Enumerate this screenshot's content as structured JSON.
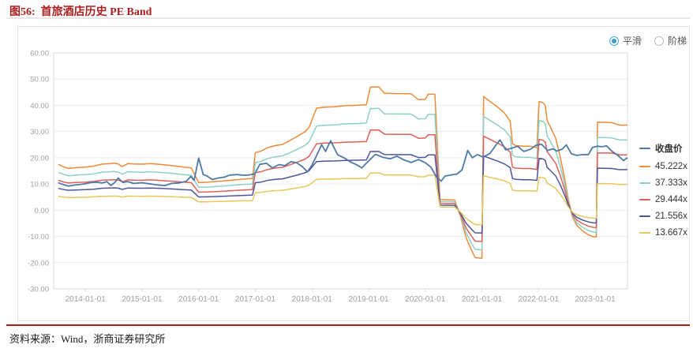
{
  "header": {
    "title": "图56:  首旅酒店历史 PE Band"
  },
  "controls": {
    "smooth_label": "平滑",
    "step_label": "阶梯",
    "selected": "平滑"
  },
  "footer": {
    "source": "资料来源：Wind，浙商证券研究所"
  },
  "colors": {
    "title_red": "#ae1c1c",
    "close": "#4e79a7",
    "band_45": "#ee8a38",
    "band_37": "#8ecfc5",
    "band_29": "#dd6057",
    "band_21": "#4e549c",
    "band_13": "#e7c75a",
    "grid": "#ececef",
    "plot_border": "#d5dae4",
    "axis_text": "#9aa0a6",
    "radio_accent": "#3d9ad1"
  },
  "chart_data": {
    "type": "line",
    "title": "首旅酒店历史 PE Band",
    "grid": true,
    "legend_position": "right",
    "y_axis": {
      "min": -30,
      "max": 60,
      "tick_values": [
        60,
        50,
        40,
        30,
        20,
        10,
        0,
        -10,
        -20,
        -30
      ],
      "tick_labels": [
        "60.00",
        "50.00",
        "40.00",
        "30.00",
        "20.00",
        "10.00",
        "0.00",
        "-10.00",
        "-20.00",
        "-30.00"
      ]
    },
    "x_axis": {
      "range_years": [
        2013.44,
        2023.57
      ],
      "tick_years": [
        2014,
        2015,
        2016,
        2017,
        2018,
        2019,
        2020,
        2021,
        2022,
        2023
      ],
      "tick_labels": [
        "2014-01-01",
        "2015-01-01",
        "2016-01-01",
        "2017-01-01",
        "2018-01-01",
        "2019-01-01",
        "2020-01-01",
        "2021-01-01",
        "2022-01-01",
        "2023-01-01"
      ]
    },
    "legend": [
      {
        "label": "收盘价",
        "color": "#4e79a7"
      },
      {
        "label": "45.222x",
        "color": "#ee8a38"
      },
      {
        "label": "37.333x",
        "color": "#8ecfc5"
      },
      {
        "label": "29.444x",
        "color": "#dd6057"
      },
      {
        "label": "21.556x",
        "color": "#4e549c"
      },
      {
        "label": "13.667x",
        "color": "#e7c75a"
      }
    ],
    "close_series": {
      "name": "收盘价",
      "color": "#4e79a7",
      "points": [
        [
          2013.53,
          10.4
        ],
        [
          2013.62,
          9.7
        ],
        [
          2013.7,
          9.2
        ],
        [
          2013.82,
          9.6
        ],
        [
          2013.95,
          9.9
        ],
        [
          2014.08,
          10.5
        ],
        [
          2014.18,
          10.7
        ],
        [
          2014.3,
          10.4
        ],
        [
          2014.38,
          10.9
        ],
        [
          2014.45,
          9.4
        ],
        [
          2014.52,
          10.6
        ],
        [
          2014.58,
          12.3
        ],
        [
          2014.66,
          10.6
        ],
        [
          2014.75,
          10.9
        ],
        [
          2014.85,
          10.2
        ],
        [
          2015.0,
          10.5
        ],
        [
          2015.12,
          10.1
        ],
        [
          2015.25,
          9.7
        ],
        [
          2015.4,
          9.4
        ],
        [
          2015.52,
          10.2
        ],
        [
          2015.65,
          10.4
        ],
        [
          2015.78,
          11.0
        ],
        [
          2015.86,
          12.9
        ],
        [
          2015.92,
          11.4
        ],
        [
          2016.0,
          19.9
        ],
        [
          2016.08,
          13.6
        ],
        [
          2016.15,
          13.0
        ],
        [
          2016.24,
          11.7
        ],
        [
          2016.35,
          12.3
        ],
        [
          2016.45,
          12.6
        ],
        [
          2016.55,
          13.4
        ],
        [
          2016.68,
          13.6
        ],
        [
          2016.8,
          13.3
        ],
        [
          2016.9,
          13.5
        ],
        [
          2016.99,
          13.9
        ],
        [
          2017.08,
          17.5
        ],
        [
          2017.2,
          17.9
        ],
        [
          2017.3,
          16.1
        ],
        [
          2017.42,
          17.4
        ],
        [
          2017.52,
          17.0
        ],
        [
          2017.63,
          18.5
        ],
        [
          2017.73,
          18.1
        ],
        [
          2017.83,
          16.6
        ],
        [
          2017.92,
          14.6
        ],
        [
          2018.0,
          17.2
        ],
        [
          2018.09,
          21.2
        ],
        [
          2018.17,
          25.0
        ],
        [
          2018.24,
          22.4
        ],
        [
          2018.33,
          26.5
        ],
        [
          2018.45,
          21.2
        ],
        [
          2018.58,
          19.8
        ],
        [
          2018.68,
          18.4
        ],
        [
          2018.8,
          17.2
        ],
        [
          2018.88,
          16.1
        ],
        [
          2019.0,
          18.8
        ],
        [
          2019.12,
          21.3
        ],
        [
          2019.25,
          20.2
        ],
        [
          2019.38,
          19.6
        ],
        [
          2019.5,
          20.6
        ],
        [
          2019.62,
          19.2
        ],
        [
          2019.75,
          18.2
        ],
        [
          2019.88,
          19.3
        ],
        [
          2020.0,
          18.1
        ],
        [
          2020.1,
          16.4
        ],
        [
          2020.2,
          12.6
        ],
        [
          2020.28,
          11.1
        ],
        [
          2020.35,
          13.0
        ],
        [
          2020.45,
          13.4
        ],
        [
          2020.56,
          13.8
        ],
        [
          2020.65,
          15.4
        ],
        [
          2020.75,
          22.8
        ],
        [
          2020.83,
          20.0
        ],
        [
          2020.92,
          21.2
        ],
        [
          2021.02,
          20.3
        ],
        [
          2021.14,
          21.6
        ],
        [
          2021.24,
          24.6
        ],
        [
          2021.32,
          26.8
        ],
        [
          2021.42,
          23.0
        ],
        [
          2021.52,
          23.6
        ],
        [
          2021.63,
          24.4
        ],
        [
          2021.74,
          22.4
        ],
        [
          2021.85,
          23.2
        ],
        [
          2021.95,
          24.7
        ],
        [
          2022.05,
          25.2
        ],
        [
          2022.16,
          22.8
        ],
        [
          2022.25,
          23.4
        ],
        [
          2022.32,
          22.6
        ],
        [
          2022.42,
          23.3
        ],
        [
          2022.49,
          24.9
        ],
        [
          2022.58,
          21.5
        ],
        [
          2022.67,
          20.9
        ],
        [
          2022.78,
          21.2
        ],
        [
          2022.88,
          21.2
        ],
        [
          2022.95,
          23.9
        ],
        [
          2023.04,
          24.4
        ],
        [
          2023.13,
          24.2
        ],
        [
          2023.2,
          24.6
        ],
        [
          2023.3,
          22.4
        ],
        [
          2023.4,
          20.9
        ],
        [
          2023.5,
          18.9
        ],
        [
          2023.56,
          19.9
        ]
      ]
    },
    "pe_bands": {
      "note": "band value = base_eps * multiple",
      "entries": [
        {
          "label": "45.222x",
          "multiple": 45.222,
          "color": "#ee8a38"
        },
        {
          "label": "37.333x",
          "multiple": 37.333,
          "color": "#8ecfc5"
        },
        {
          "label": "29.444x",
          "multiple": 29.444,
          "color": "#dd6057"
        },
        {
          "label": "21.556x",
          "multiple": 21.556,
          "color": "#4e549c"
        },
        {
          "label": "13.667x",
          "multiple": 13.667,
          "color": "#e7c75a"
        }
      ],
      "base_eps_points": [
        [
          2013.53,
          0.385
        ],
        [
          2013.62,
          0.365
        ],
        [
          2013.7,
          0.352
        ],
        [
          2013.82,
          0.358
        ],
        [
          2014.0,
          0.363
        ],
        [
          2014.15,
          0.372
        ],
        [
          2014.3,
          0.389
        ],
        [
          2014.42,
          0.392
        ],
        [
          2014.5,
          0.396
        ],
        [
          2014.58,
          0.39
        ],
        [
          2014.65,
          0.368
        ],
        [
          2014.75,
          0.393
        ],
        [
          2014.85,
          0.39
        ],
        [
          2015.0,
          0.388
        ],
        [
          2015.15,
          0.393
        ],
        [
          2015.35,
          0.385
        ],
        [
          2015.55,
          0.375
        ],
        [
          2015.75,
          0.362
        ],
        [
          2015.87,
          0.356
        ],
        [
          2015.93,
          0.3
        ],
        [
          2016.0,
          0.233
        ],
        [
          2016.15,
          0.236
        ],
        [
          2016.3,
          0.242
        ],
        [
          2016.45,
          0.247
        ],
        [
          2016.6,
          0.254
        ],
        [
          2016.78,
          0.262
        ],
        [
          2016.95,
          0.268
        ],
        [
          2017.0,
          0.486
        ],
        [
          2017.1,
          0.498
        ],
        [
          2017.22,
          0.528
        ],
        [
          2017.35,
          0.545
        ],
        [
          2017.48,
          0.555
        ],
        [
          2017.6,
          0.585
        ],
        [
          2017.75,
          0.625
        ],
        [
          2017.88,
          0.663
        ],
        [
          2017.95,
          0.7
        ],
        [
          2018.08,
          0.86
        ],
        [
          2018.2,
          0.868
        ],
        [
          2018.4,
          0.872
        ],
        [
          2018.6,
          0.882
        ],
        [
          2018.8,
          0.885
        ],
        [
          2018.96,
          0.89
        ],
        [
          2019.03,
          1.038
        ],
        [
          2019.18,
          1.04
        ],
        [
          2019.28,
          0.985
        ],
        [
          2019.5,
          0.983
        ],
        [
          2019.75,
          0.982
        ],
        [
          2019.88,
          0.932
        ],
        [
          2020.0,
          0.935
        ],
        [
          2020.05,
          0.978
        ],
        [
          2020.17,
          0.978
        ],
        [
          2020.26,
          0.09
        ],
        [
          2020.4,
          0.088
        ],
        [
          2020.52,
          0.086
        ],
        [
          2020.62,
          -0.05
        ],
        [
          2020.72,
          -0.23
        ],
        [
          2020.82,
          -0.34
        ],
        [
          2020.88,
          -0.4
        ],
        [
          2021.0,
          -0.405
        ],
        [
          2021.03,
          0.958
        ],
        [
          2021.15,
          0.915
        ],
        [
          2021.28,
          0.868
        ],
        [
          2021.4,
          0.818
        ],
        [
          2021.5,
          0.752
        ],
        [
          2021.54,
          0.56
        ],
        [
          2021.6,
          0.545
        ],
        [
          2021.72,
          0.54
        ],
        [
          2021.85,
          0.54
        ],
        [
          2021.97,
          0.528
        ],
        [
          2022.01,
          0.918
        ],
        [
          2022.08,
          0.905
        ],
        [
          2022.12,
          0.882
        ],
        [
          2022.15,
          0.76
        ],
        [
          2022.22,
          0.69
        ],
        [
          2022.3,
          0.61
        ],
        [
          2022.38,
          0.455
        ],
        [
          2022.46,
          0.27
        ],
        [
          2022.53,
          0.08
        ],
        [
          2022.6,
          -0.06
        ],
        [
          2022.68,
          -0.13
        ],
        [
          2022.78,
          -0.175
        ],
        [
          2022.88,
          -0.208
        ],
        [
          2022.97,
          -0.224
        ],
        [
          2023.02,
          -0.226
        ],
        [
          2023.04,
          0.743
        ],
        [
          2023.15,
          0.742
        ],
        [
          2023.3,
          0.738
        ],
        [
          2023.38,
          0.724
        ],
        [
          2023.45,
          0.717
        ],
        [
          2023.56,
          0.718
        ]
      ]
    }
  }
}
